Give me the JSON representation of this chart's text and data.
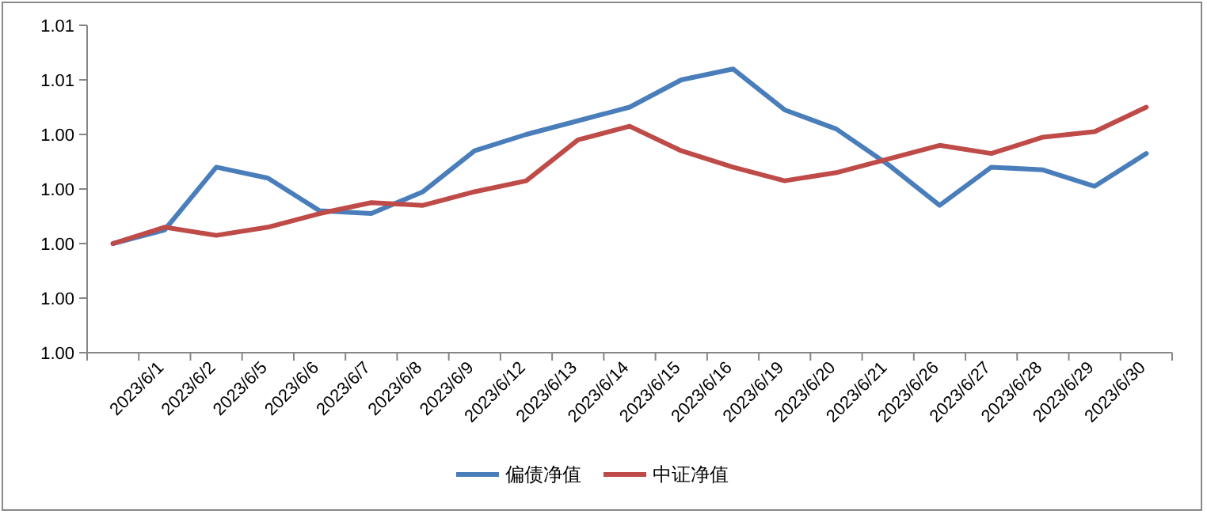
{
  "chart_data": {
    "type": "line",
    "categories": [
      null,
      "2023/6/1",
      "2023/6/2",
      "2023/6/5",
      "2023/6/6",
      "2023/6/7",
      "2023/6/8",
      "2023/6/9",
      "2023/6/12",
      "2023/6/13",
      "2023/6/14",
      "2023/6/15",
      "2023/6/16",
      "2023/6/19",
      "2023/6/20",
      "2023/6/21",
      "2023/6/26",
      "2023/6/27",
      "2023/6/28",
      "2023/6/29",
      "2023/6/30"
    ],
    "series": [
      {
        "name": "偏债净值",
        "color": "#4a7ebb",
        "values": [
          1.0,
          1.0005,
          1.0028,
          1.0024,
          1.0012,
          1.0011,
          1.0019,
          1.0034,
          1.004,
          1.0045,
          1.005,
          1.006,
          1.0064,
          1.0049,
          1.0042,
          1.0029,
          1.0014,
          1.0028,
          1.0027,
          1.0021,
          1.0033
        ]
      },
      {
        "name": "中证净值",
        "color": "#be4b48",
        "values": [
          1.0,
          1.0006,
          1.0003,
          1.0006,
          1.0011,
          1.0015,
          1.0014,
          1.0019,
          1.0023,
          1.0038,
          1.0043,
          1.0034,
          1.0028,
          1.0023,
          1.0026,
          1.0031,
          1.0036,
          1.0033,
          1.0039,
          1.0041,
          1.005
        ]
      }
    ],
    "ylim": [
      0.996,
      1.008
    ],
    "yticks": [
      {
        "value": 0.996,
        "label": "1.00"
      },
      {
        "value": 0.998,
        "label": "1.00"
      },
      {
        "value": 1.0,
        "label": "1.00"
      },
      {
        "value": 1.002,
        "label": "1.00"
      },
      {
        "value": 1.004,
        "label": "1.00"
      },
      {
        "value": 1.006,
        "label": "1.01"
      },
      {
        "value": 1.008,
        "label": "1.01"
      }
    ],
    "legend": "bottom",
    "marker": "none",
    "line_style": "solid"
  }
}
